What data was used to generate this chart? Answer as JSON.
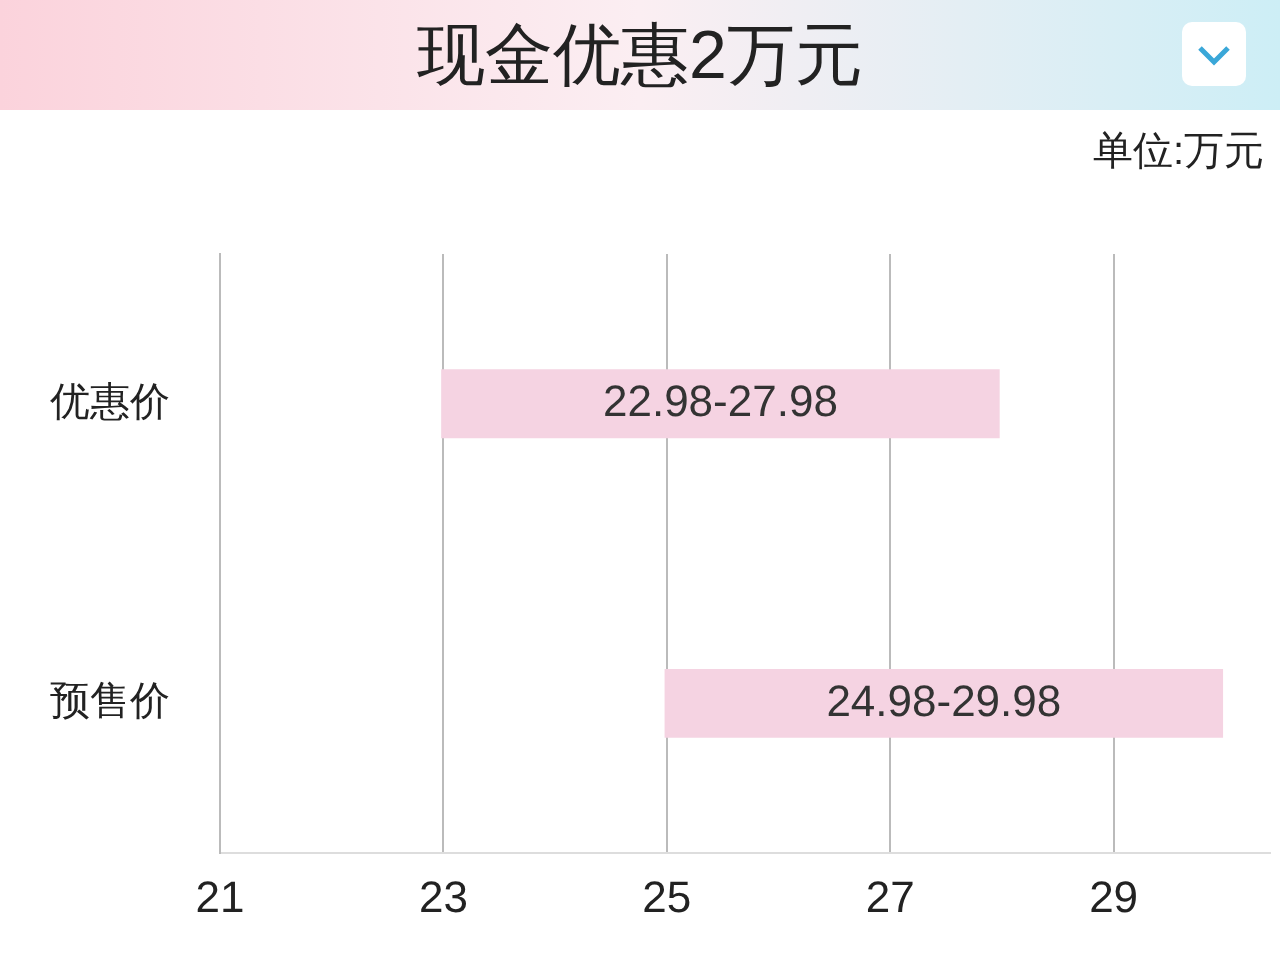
{
  "chart_data": {
    "type": "bar",
    "orientation": "horizontal",
    "title": "现金优惠2万元",
    "annotations": [
      "单位:万元"
    ],
    "categories": [
      "优惠价",
      "预售价"
    ],
    "series": [
      {
        "color": "#f5d3e2",
        "base": [
          22.98,
          24.98
        ],
        "values": [
          5,
          5
        ],
        "value_labels": [
          "22.98-27.98",
          "24.98-29.98"
        ]
      }
    ],
    "xlim": [
      21,
      30.4
    ],
    "xticks": [
      21,
      23,
      25,
      27,
      29
    ],
    "grid": "x",
    "legend": false
  }
}
